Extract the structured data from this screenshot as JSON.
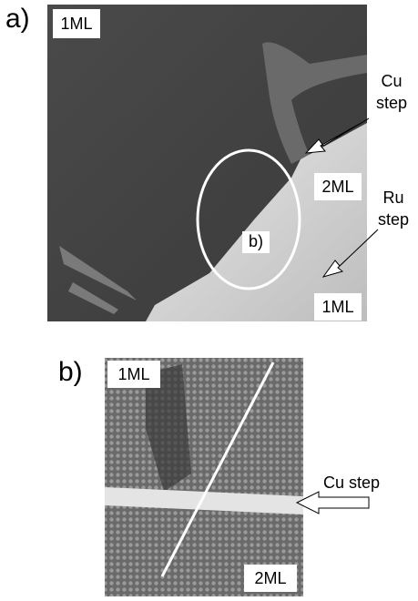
{
  "panel_a": {
    "label": "a)",
    "top_left": "1ML",
    "cu_step": [
      "Cu",
      "step"
    ],
    "upper_terrace": "2ML",
    "ru_step": [
      "Ru",
      "step"
    ],
    "lower_terrace": "1ML",
    "circle_label": "b)"
  },
  "panel_b": {
    "label": "b)",
    "top_left": "1ML",
    "bottom": "2ML",
    "cu_step": "Cu step"
  }
}
